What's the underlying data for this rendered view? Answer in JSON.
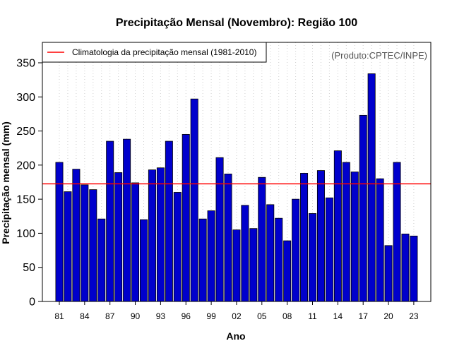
{
  "chart_data": {
    "type": "bar",
    "title": "Precipitação Mensal (Novembro): Região 100",
    "xlabel": "Ano",
    "ylabel": "Precipitação mensal (mm)",
    "ylim": [
      0,
      380
    ],
    "yticks": [
      0,
      50,
      100,
      150,
      200,
      250,
      300,
      350
    ],
    "categories": [
      "1981",
      "1982",
      "1983",
      "1984",
      "1985",
      "1986",
      "1987",
      "1988",
      "1989",
      "1990",
      "1991",
      "1992",
      "1993",
      "1994",
      "1995",
      "1996",
      "1997",
      "1998",
      "1999",
      "2000",
      "2001",
      "2002",
      "2003",
      "2004",
      "2005",
      "2006",
      "2007",
      "2008",
      "2009",
      "2010",
      "2011",
      "2012",
      "2013",
      "2014",
      "2015",
      "2016",
      "2017",
      "2018",
      "2019",
      "2020",
      "2021",
      "2022",
      "2023"
    ],
    "xtick_labels": [
      "81",
      "84",
      "87",
      "90",
      "93",
      "96",
      "99",
      "02",
      "05",
      "08",
      "11",
      "14",
      "17",
      "20",
      "23"
    ],
    "xtick_every": 3,
    "values": [
      204,
      161,
      194,
      171,
      164,
      121,
      235,
      189,
      238,
      174,
      120,
      193,
      196,
      235,
      160,
      245,
      297,
      121,
      133,
      211,
      187,
      105,
      141,
      107,
      182,
      142,
      122,
      89,
      150,
      188,
      129,
      192,
      152,
      221,
      204,
      190,
      273,
      334,
      180,
      82,
      204,
      99,
      96
    ],
    "bar_color": "#0000CC",
    "climatology": {
      "value": 172.5,
      "color": "#FF0000",
      "legend_label": "Climatologia da precipitação mensal (1981-2010)"
    },
    "source_label": "(Produto:CPTEC/INPE)",
    "grid": "vertical-dotted",
    "legend_position": "top-left"
  }
}
